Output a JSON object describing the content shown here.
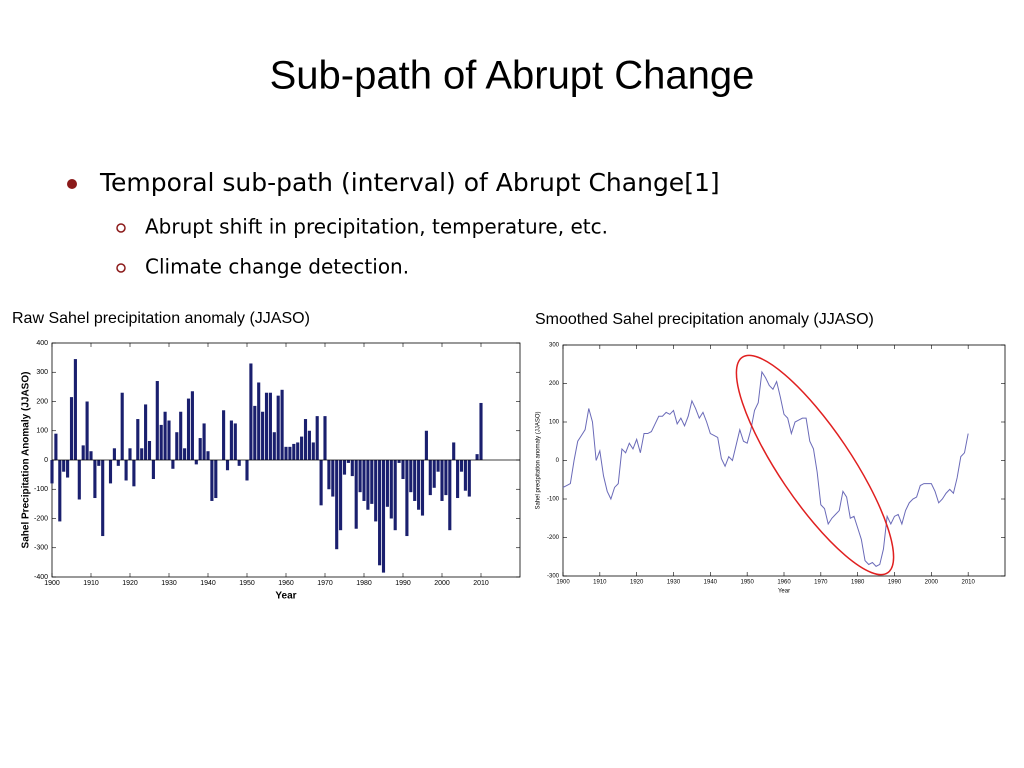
{
  "title": "Sub-path of Abrupt Change",
  "bullets": [
    {
      "text": "Temporal sub-path (interval) of Abrupt Change[1]",
      "sub": [
        "Abrupt shift in precipitation, temperature, etc.",
        "Climate change detection."
      ]
    }
  ],
  "chart_data": [
    {
      "type": "bar",
      "title": "Raw Sahel precipitation anomaly (JJASO)",
      "xlabel": "Year",
      "ylabel": "Sahel Precipitation Anomaly (JJASO)",
      "color": "#1a1f6e",
      "xlim": [
        1900,
        2020
      ],
      "xticks": [
        1900,
        1910,
        1920,
        1930,
        1940,
        1950,
        1960,
        1970,
        1980,
        1990,
        2000,
        2010
      ],
      "ylim": [
        -400,
        400
      ],
      "yticks": [
        -400,
        -300,
        -200,
        -100,
        0,
        100,
        200,
        300,
        400
      ],
      "x": [
        1900,
        1901,
        1902,
        1903,
        1904,
        1905,
        1906,
        1907,
        1908,
        1909,
        1910,
        1911,
        1912,
        1913,
        1914,
        1915,
        1916,
        1917,
        1918,
        1919,
        1920,
        1921,
        1922,
        1923,
        1924,
        1925,
        1926,
        1927,
        1928,
        1929,
        1930,
        1931,
        1932,
        1933,
        1934,
        1935,
        1936,
        1937,
        1938,
        1939,
        1940,
        1941,
        1942,
        1943,
        1944,
        1945,
        1946,
        1947,
        1948,
        1949,
        1950,
        1951,
        1952,
        1953,
        1954,
        1955,
        1956,
        1957,
        1958,
        1959,
        1960,
        1961,
        1962,
        1963,
        1964,
        1965,
        1966,
        1967,
        1968,
        1969,
        1970,
        1971,
        1972,
        1973,
        1974,
        1975,
        1976,
        1977,
        1978,
        1979,
        1980,
        1981,
        1982,
        1983,
        1984,
        1985,
        1986,
        1987,
        1988,
        1989,
        1990,
        1991,
        1992,
        1993,
        1994,
        1995,
        1996,
        1997,
        1998,
        1999,
        2000,
        2001,
        2002,
        2003,
        2004,
        2005,
        2006,
        2007,
        2008,
        2009,
        2010
      ],
      "values": [
        -80,
        90,
        -210,
        -40,
        -60,
        215,
        345,
        -135,
        50,
        200,
        30,
        -130,
        -20,
        -260,
        0,
        -80,
        40,
        -20,
        230,
        -70,
        40,
        -90,
        140,
        40,
        190,
        65,
        -65,
        270,
        120,
        165,
        135,
        -30,
        95,
        165,
        40,
        210,
        235,
        -15,
        75,
        125,
        30,
        -140,
        -130,
        0,
        170,
        -35,
        135,
        125,
        -20,
        0,
        -70,
        330,
        185,
        265,
        165,
        230,
        230,
        95,
        220,
        240,
        45,
        45,
        55,
        60,
        80,
        140,
        100,
        60,
        150,
        -155,
        150,
        -100,
        -125,
        -305,
        -240,
        -50,
        -10,
        -55,
        -235,
        -110,
        -140,
        -170,
        -150,
        -210,
        -360,
        -385,
        -160,
        -200,
        -240,
        -10,
        -65,
        -260,
        -110,
        -140,
        -170,
        -190,
        100,
        -120,
        -95,
        -40,
        -140,
        -120,
        -240,
        60,
        -130,
        -40,
        -105,
        -125,
        0,
        20,
        195
      ]
    },
    {
      "type": "line",
      "title": "Smoothed Sahel precipitation anomaly (JJASO)",
      "xlabel": "Year",
      "ylabel": "Sahel precipitation anomaly (JJASO)",
      "color": "#6a6ab8",
      "xlim": [
        1900,
        2020
      ],
      "xticks": [
        1900,
        1910,
        1920,
        1930,
        1940,
        1950,
        1960,
        1970,
        1980,
        1990,
        2000,
        2010
      ],
      "ylim": [
        -300,
        300
      ],
      "yticks": [
        -300,
        -200,
        -100,
        0,
        100,
        200,
        300
      ],
      "x": [
        1900,
        1901,
        1902,
        1903,
        1904,
        1905,
        1906,
        1907,
        1908,
        1909,
        1910,
        1911,
        1912,
        1913,
        1914,
        1915,
        1916,
        1917,
        1918,
        1919,
        1920,
        1921,
        1922,
        1923,
        1924,
        1925,
        1926,
        1927,
        1928,
        1929,
        1930,
        1931,
        1932,
        1933,
        1934,
        1935,
        1936,
        1937,
        1938,
        1939,
        1940,
        1941,
        1942,
        1943,
        1944,
        1945,
        1946,
        1947,
        1948,
        1949,
        1950,
        1951,
        1952,
        1953,
        1954,
        1955,
        1956,
        1957,
        1958,
        1959,
        1960,
        1961,
        1962,
        1963,
        1964,
        1965,
        1966,
        1967,
        1968,
        1969,
        1970,
        1971,
        1972,
        1973,
        1974,
        1975,
        1976,
        1977,
        1978,
        1979,
        1980,
        1981,
        1982,
        1983,
        1984,
        1985,
        1986,
        1987,
        1988,
        1989,
        1990,
        1991,
        1992,
        1993,
        1994,
        1995,
        1996,
        1997,
        1998,
        1999,
        2000,
        2001,
        2002,
        2003,
        2004,
        2005,
        2006,
        2007,
        2008,
        2009,
        2010
      ],
      "values": [
        -70,
        -65,
        -60,
        0,
        50,
        65,
        80,
        135,
        100,
        0,
        25,
        -40,
        -80,
        -100,
        -70,
        -60,
        30,
        20,
        45,
        30,
        55,
        20,
        70,
        70,
        75,
        95,
        115,
        115,
        125,
        120,
        130,
        95,
        110,
        90,
        115,
        155,
        135,
        110,
        125,
        100,
        70,
        65,
        60,
        5,
        -15,
        10,
        0,
        40,
        80,
        50,
        45,
        80,
        130,
        150,
        230,
        215,
        195,
        185,
        205,
        165,
        120,
        110,
        70,
        100,
        105,
        110,
        110,
        50,
        30,
        -30,
        -115,
        -125,
        -165,
        -150,
        -140,
        -130,
        -80,
        -95,
        -150,
        -145,
        -175,
        -205,
        -260,
        -270,
        -265,
        -275,
        -270,
        -230,
        -145,
        -165,
        -145,
        -140,
        -165,
        -130,
        -110,
        -100,
        -95,
        -65,
        -60,
        -60,
        -60,
        -80,
        -110,
        -100,
        -85,
        -75,
        -85,
        -45,
        10,
        20,
        70
      ]
    }
  ]
}
